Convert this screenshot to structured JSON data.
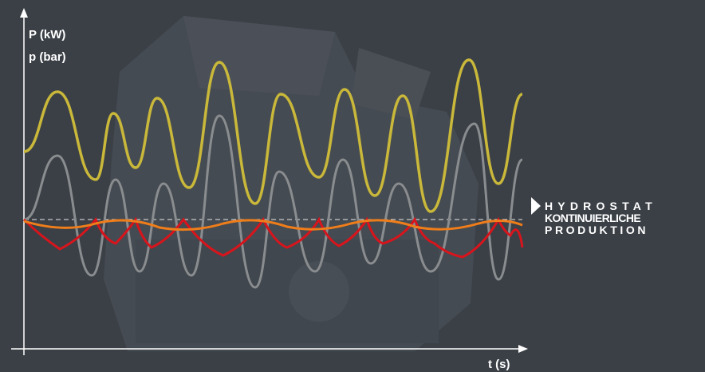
{
  "axes": {
    "y_label_1": "P (kW)",
    "y_label_2": "p (bar)",
    "x_label": "t (s)"
  },
  "callout": {
    "lines": [
      "HYDROSTAT",
      "KONTINUIERLICHE",
      "PRODUKTION"
    ]
  }
}
